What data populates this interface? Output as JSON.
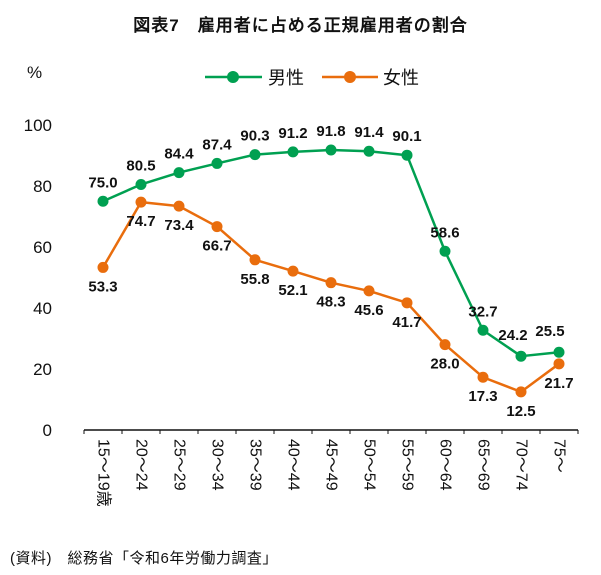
{
  "chart_data": {
    "type": "line",
    "title": "図表7　雇用者に占める正規雇用者の割合",
    "percent_label": "%",
    "categories": [
      "15～19歳",
      "20～24",
      "25～29",
      "30～34",
      "35～39",
      "40～44",
      "45～49",
      "50～54",
      "55～59",
      "60～64",
      "65～69",
      "70～74",
      "75～"
    ],
    "series": [
      {
        "name": "男性",
        "color": "#00a051",
        "values": [
          75.0,
          80.5,
          84.4,
          87.4,
          90.3,
          91.2,
          91.8,
          91.4,
          90.1,
          58.6,
          32.7,
          24.2,
          25.5
        ]
      },
      {
        "name": "女性",
        "color": "#e96d0d",
        "values": [
          53.3,
          74.7,
          73.4,
          66.7,
          55.8,
          52.1,
          48.3,
          45.6,
          41.7,
          28.0,
          17.3,
          12.5,
          21.7
        ]
      }
    ],
    "y_ticks": [
      0,
      20,
      40,
      60,
      80,
      100
    ],
    "ylim": [
      0,
      100
    ],
    "grid": false,
    "legend_position": "top",
    "source": "(資料)　総務省「令和6年労働力調査」"
  }
}
